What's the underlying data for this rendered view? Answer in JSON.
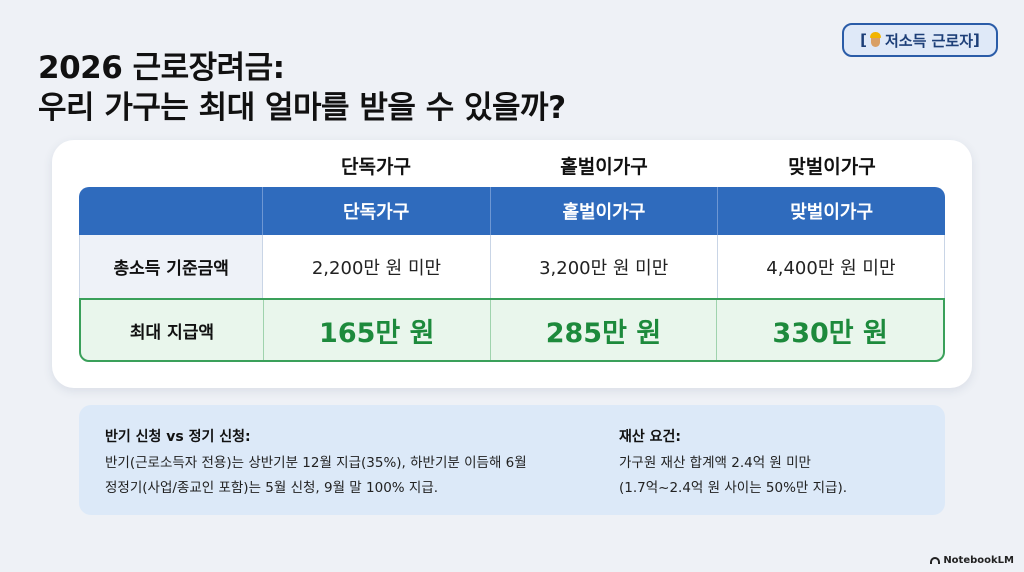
{
  "title": {
    "line1": "2026 근로장려금:",
    "line2": "우리 가구는 최대 얼마를 받을 수 있을까?"
  },
  "badge": {
    "bracket_open": "[",
    "label": "저소득 근로자",
    "bracket_close": "]",
    "icon": "construction-worker-icon"
  },
  "table": {
    "top_headers": [
      "단독가구",
      "홑벌이가구",
      "맞벌이가구"
    ],
    "header_row": [
      "",
      "단독가구",
      "홑벌이가구",
      "맞벌이가구"
    ],
    "income_row": {
      "label": "총소득 기준금액",
      "values": [
        "2,200만 원 미만",
        "3,200만 원 미만",
        "4,400만 원 미만"
      ]
    },
    "max_row": {
      "label": "최대 지급액",
      "values": [
        "165만 원",
        "285만 원",
        "330만 원"
      ]
    }
  },
  "info": {
    "left": {
      "heading": "반기 신청 vs 정기 신청:",
      "line1": "반기(근로소득자 전용)는 상반기분 12월 지급(35%), 하반기분 이듬해 6월",
      "line2": "정정기(사업/종교인 포함)는 5월 신청, 9월 말 100% 지급."
    },
    "right": {
      "heading": "재산 요건:",
      "line1": "가구원 재산 합계액 2.4억 원 미만",
      "line2": "(1.7억~2.4억 원 사이는 50%만 지급)."
    }
  },
  "brand": {
    "label": "NotebookLM",
    "icon": "notebooklm-logo-icon"
  },
  "colors": {
    "header_blue": "#2f6bbd",
    "amount_green": "#1d8a3c",
    "max_row_bg": "#e9f6ec",
    "info_bg": "#dce9f8"
  }
}
